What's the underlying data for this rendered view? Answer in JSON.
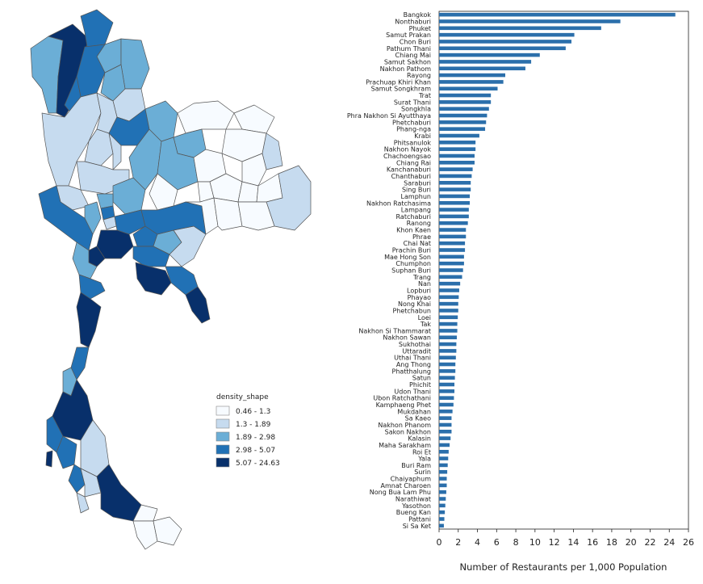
{
  "legend": {
    "title": "density_shape",
    "items": [
      {
        "label": "0.46 - 1.3",
        "color": "#f7fbff"
      },
      {
        "label": "1.3 - 1.89",
        "color": "#c6dbef"
      },
      {
        "label": "1.89 - 2.98",
        "color": "#6baed6"
      },
      {
        "label": "2.98 - 5.07",
        "color": "#2171b5"
      },
      {
        "label": "5.07 - 24.63",
        "color": "#08306b"
      }
    ]
  },
  "chart_data": [
    {
      "type": "choropleth-map",
      "subject": "Thailand provinces",
      "legend_title": "density_shape",
      "bins": [
        "0.46 - 1.3",
        "1.3 - 1.89",
        "1.89 - 2.98",
        "2.98 - 5.07",
        "5.07 - 24.63"
      ],
      "colors": [
        "#f7fbff",
        "#c6dbef",
        "#6baed6",
        "#2171b5",
        "#08306b"
      ]
    },
    {
      "type": "bar",
      "orientation": "horizontal",
      "bar_color": "#2b6fab",
      "xlabel": "Number of Restaurants per 1,000 Population",
      "xlim": [
        0,
        26
      ],
      "xticks": [
        0,
        2,
        4,
        6,
        8,
        10,
        12,
        14,
        16,
        18,
        20,
        22,
        24,
        26
      ],
      "categories": [
        "Bangkok",
        "Nonthaburi",
        "Phuket",
        "Samut Prakan",
        "Chon Buri",
        "Pathum Thani",
        "Chiang Mai",
        "Samut Sakhon",
        "Nakhon Pathom",
        "Rayong",
        "Prachuap Khiri Khan",
        "Samut Songkhram",
        "Trat",
        "Surat Thani",
        "Songkhla",
        "Phra Nakhon Si Ayutthaya",
        "Phetchaburi",
        "Phang-nga",
        "Krabi",
        "Phitsanulok",
        "Nakhon Nayok",
        "Chachoengsao",
        "Chiang Rai",
        "Kanchanaburi",
        "Chanthaburi",
        "Saraburi",
        "Sing Buri",
        "Lamphun",
        "Nakhon Ratchasima",
        "Lampang",
        "Ratchaburi",
        "Ranong",
        "Khon Kaen",
        "Phrae",
        "Chai Nat",
        "Prachin Buri",
        "Mae Hong Son",
        "Chumphon",
        "Suphan Buri",
        "Trang",
        "Nan",
        "Lopburi",
        "Phayao",
        "Nong Khai",
        "Phetchabun",
        "Loei",
        "Tak",
        "Nakhon Si Thammarat",
        "Nakhon Sawan",
        "Sukhothai",
        "Uttaradit",
        "Uthai Thani",
        "Ang Thong",
        "Phatthalung",
        "Satun",
        "Phichit",
        "Udon Thani",
        "Ubon Ratchathani",
        "Kamphaeng Phet",
        "Mukdahan",
        "Sa Kaeo",
        "Nakhon Phanom",
        "Sakon Nakhon",
        "Kalasin",
        "Maha Sarakham",
        "Roi Et",
        "Yala",
        "Buri Ram",
        "Surin",
        "Chaiyaphum",
        "Amnat Charoen",
        "Nong Bua Lam Phu",
        "Narathiwat",
        "Yasothon",
        "Bueng Kan",
        "Pattani",
        "Si Sa Ket"
      ],
      "values": [
        24.63,
        18.9,
        16.9,
        14.1,
        13.8,
        13.2,
        10.5,
        9.6,
        9.0,
        6.9,
        6.7,
        6.1,
        5.4,
        5.4,
        5.2,
        5.0,
        4.9,
        4.8,
        4.2,
        3.8,
        3.8,
        3.7,
        3.7,
        3.5,
        3.4,
        3.3,
        3.3,
        3.2,
        3.2,
        3.1,
        3.1,
        3.0,
        2.8,
        2.8,
        2.7,
        2.7,
        2.6,
        2.6,
        2.5,
        2.4,
        2.2,
        2.1,
        2.05,
        2.0,
        2.0,
        1.95,
        1.9,
        1.9,
        1.85,
        1.8,
        1.8,
        1.75,
        1.7,
        1.7,
        1.65,
        1.6,
        1.6,
        1.55,
        1.5,
        1.4,
        1.3,
        1.3,
        1.3,
        1.2,
        1.1,
        1.0,
        0.95,
        0.9,
        0.85,
        0.8,
        0.8,
        0.75,
        0.7,
        0.65,
        0.6,
        0.55,
        0.5
      ]
    }
  ]
}
